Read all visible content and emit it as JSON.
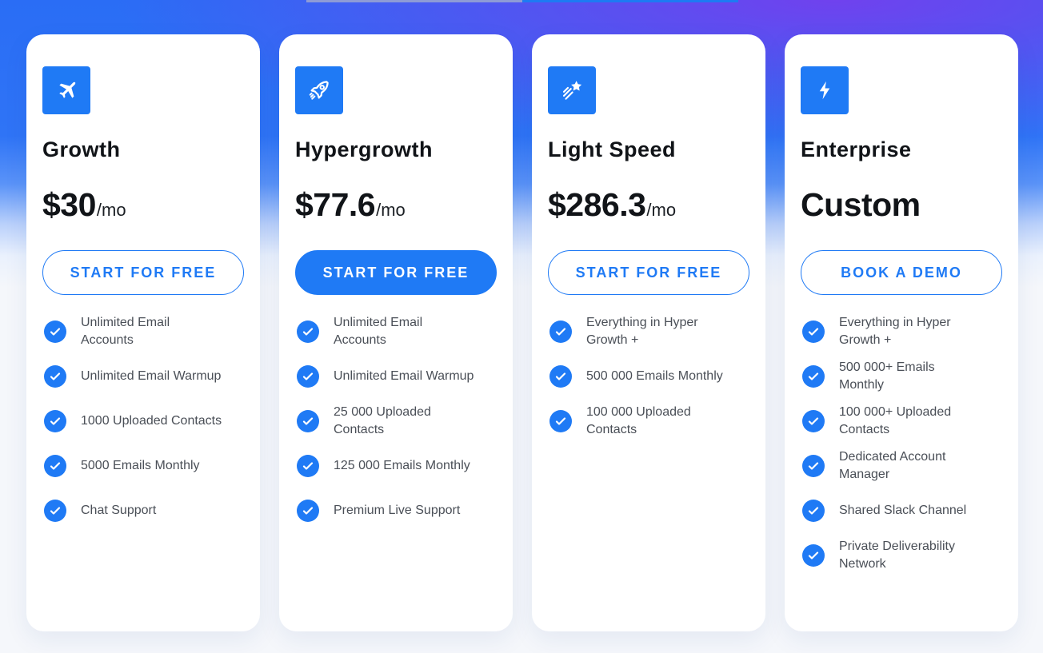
{
  "colors": {
    "accent": "#1f7af5",
    "top_gradient": "#2a6df5",
    "top_purple": "#7c3aed",
    "card_bg": "#ffffff",
    "text_dark": "#111418",
    "text_muted": "#4a4f57"
  },
  "plans": [
    {
      "icon": "plane-icon",
      "name": "Growth",
      "price": "$30",
      "period": "/mo",
      "cta": "START FOR FREE",
      "cta_style": "outline",
      "features": [
        "Unlimited Email Accounts",
        "Unlimited Email Warmup",
        "1000 Uploaded Contacts",
        "5000 Emails Monthly",
        "Chat Support"
      ]
    },
    {
      "icon": "rocket-icon",
      "name": "Hypergrowth",
      "price": "$77.6",
      "period": "/mo",
      "cta": "START FOR FREE",
      "cta_style": "filled",
      "features": [
        "Unlimited Email Accounts",
        "Unlimited Email Warmup",
        "25 000 Uploaded Contacts",
        "125 000 Emails Monthly",
        "Premium Live Support"
      ]
    },
    {
      "icon": "shooting-star-icon",
      "name": "Light Speed",
      "price": "$286.3",
      "period": "/mo",
      "cta": "START FOR FREE",
      "cta_style": "outline",
      "features": [
        "Everything in Hyper Growth +",
        "500 000 Emails Monthly",
        "100 000 Uploaded Contacts"
      ]
    },
    {
      "icon": "lightning-icon",
      "name": "Enterprise",
      "price": "Custom",
      "period": "",
      "cta": "BOOK A DEMO",
      "cta_style": "outline",
      "features": [
        "Everything in Hyper Growth +",
        "500 000+ Emails Monthly",
        "100 000+ Uploaded Contacts",
        "Dedicated Account Manager",
        "Shared Slack Channel",
        "Private Deliverability Network"
      ]
    }
  ]
}
